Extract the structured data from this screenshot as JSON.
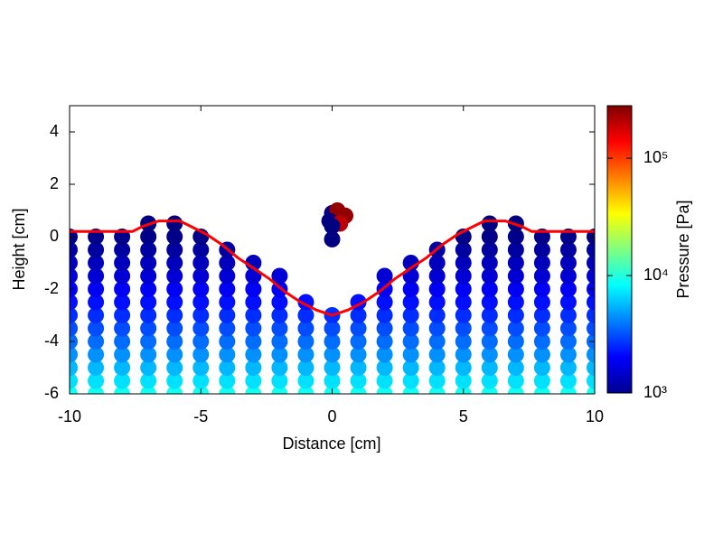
{
  "chart_data": {
    "type": "scatter",
    "xlabel": "Distance [cm]",
    "ylabel": "Height [cm]",
    "xlim": [
      -10,
      10
    ],
    "ylim": [
      -6,
      5
    ],
    "xticks": [
      -10,
      -5,
      0,
      5,
      10
    ],
    "yticks": [
      -6,
      -4,
      -2,
      0,
      2,
      4
    ],
    "x": [
      -10,
      -10,
      -10,
      -10,
      -10,
      -10,
      -10,
      -10,
      -10,
      -10,
      -10,
      -10,
      -10,
      -9,
      -9,
      -9,
      -9,
      -9,
      -9,
      -9,
      -9,
      -9,
      -9,
      -9,
      -9,
      -9,
      -8,
      -8,
      -8,
      -8,
      -8,
      -8,
      -8,
      -8,
      -8,
      -8,
      -8,
      -8,
      -8,
      -7,
      -7,
      -7,
      -7,
      -7,
      -7,
      -7,
      -7,
      -7,
      -7,
      -7,
      -7,
      -7,
      -7,
      -6,
      -6,
      -6,
      -6,
      -6,
      -6,
      -6,
      -6,
      -6,
      -6,
      -6,
      -6,
      -6,
      -6,
      -5,
      -5,
      -5,
      -5,
      -5,
      -5,
      -5,
      -5,
      -5,
      -5,
      -5,
      -5,
      -5,
      -4,
      -4,
      -4,
      -4,
      -4,
      -4,
      -4,
      -4,
      -4,
      -4,
      -4,
      -4,
      -3,
      -3,
      -3,
      -3,
      -3,
      -3,
      -3,
      -3,
      -3,
      -3,
      -3,
      -2,
      -2,
      -2,
      -2,
      -2,
      -2,
      -2,
      -2,
      -2,
      -2,
      -1,
      -1,
      -1,
      -1,
      -1,
      -1,
      -1,
      -1,
      0,
      0,
      0,
      0,
      0,
      0,
      0,
      1,
      1,
      1,
      1,
      1,
      1,
      1,
      1,
      2,
      2,
      2,
      2,
      2,
      2,
      2,
      2,
      2,
      2,
      3,
      3,
      3,
      3,
      3,
      3,
      3,
      3,
      3,
      3,
      3,
      4,
      4,
      4,
      4,
      4,
      4,
      4,
      4,
      4,
      4,
      4,
      4,
      5,
      5,
      5,
      5,
      5,
      5,
      5,
      5,
      5,
      5,
      5,
      5,
      5,
      6,
      6,
      6,
      6,
      6,
      6,
      6,
      6,
      6,
      6,
      6,
      6,
      6,
      6,
      7,
      7,
      7,
      7,
      7,
      7,
      7,
      7,
      7,
      7,
      7,
      7,
      7,
      7,
      8,
      8,
      8,
      8,
      8,
      8,
      8,
      8,
      8,
      8,
      8,
      8,
      8,
      9,
      9,
      9,
      9,
      9,
      9,
      9,
      9,
      9,
      9,
      9,
      9,
      9,
      10,
      10,
      10,
      10,
      10,
      10,
      10,
      10,
      10,
      10,
      10,
      10,
      10,
      0,
      0.2,
      0.5,
      -0.1,
      0.3,
      0,
      0
    ],
    "y": [
      -6,
      -5.5,
      -5,
      -4.5,
      -4,
      -3.5,
      -3,
      -2.5,
      -2,
      -1.5,
      -1,
      -0.5,
      0,
      -6,
      -5.5,
      -5,
      -4.5,
      -4,
      -3.5,
      -3,
      -2.5,
      -2,
      -1.5,
      -1,
      -0.5,
      0,
      -6,
      -5.5,
      -5,
      -4.5,
      -4,
      -3.5,
      -3,
      -2.5,
      -2,
      -1.5,
      -1,
      -0.5,
      0,
      -6,
      -5.5,
      -5,
      -4.5,
      -4,
      -3.5,
      -3,
      -2.5,
      -2,
      -1.5,
      -1,
      -0.5,
      0,
      0.5,
      -6,
      -5.5,
      -5,
      -4.5,
      -4,
      -3.5,
      -3,
      -2.5,
      -2,
      -1.5,
      -1,
      -0.5,
      0,
      0.5,
      -6,
      -5.5,
      -5,
      -4.5,
      -4,
      -3.5,
      -3,
      -2.5,
      -2,
      -1.5,
      -1,
      -0.5,
      0,
      -6,
      -5.5,
      -5,
      -4.5,
      -4,
      -3.5,
      -3,
      -2.5,
      -2,
      -1.5,
      -1,
      -0.5,
      -6,
      -5.5,
      -5,
      -4.5,
      -4,
      -3.5,
      -3,
      -2.5,
      -2,
      -1.5,
      -1,
      -6,
      -5.5,
      -5,
      -4.5,
      -4,
      -3.5,
      -3,
      -2.5,
      -2,
      -1.5,
      -6,
      -5.5,
      -5,
      -4.5,
      -4,
      -3.5,
      -3,
      -2.5,
      -6,
      -5.5,
      -5,
      -4.5,
      -4,
      -3.5,
      -3,
      -6,
      -5.5,
      -5,
      -4.5,
      -4,
      -3.5,
      -3,
      -2.5,
      -6,
      -5.5,
      -5,
      -4.5,
      -4,
      -3.5,
      -3,
      -2.5,
      -2,
      -1.5,
      -6,
      -5.5,
      -5,
      -4.5,
      -4,
      -3.5,
      -3,
      -2.5,
      -2,
      -1.5,
      -1,
      -6,
      -5.5,
      -5,
      -4.5,
      -4,
      -3.5,
      -3,
      -2.5,
      -2,
      -1.5,
      -1,
      -0.5,
      -6,
      -5.5,
      -5,
      -4.5,
      -4,
      -3.5,
      -3,
      -2.5,
      -2,
      -1.5,
      -1,
      -0.5,
      0,
      -6,
      -5.5,
      -5,
      -4.5,
      -4,
      -3.5,
      -3,
      -2.5,
      -2,
      -1.5,
      -1,
      -0.5,
      0,
      0.5,
      -6,
      -5.5,
      -5,
      -4.5,
      -4,
      -3.5,
      -3,
      -2.5,
      -2,
      -1.5,
      -1,
      -0.5,
      0,
      0.5,
      -6,
      -5.5,
      -5,
      -4.5,
      -4,
      -3.5,
      -3,
      -2.5,
      -2,
      -1.5,
      -1,
      -0.5,
      0,
      -6,
      -5.5,
      -5,
      -4.5,
      -4,
      -3.5,
      -3,
      -2.5,
      -2,
      -1.5,
      -1,
      -0.5,
      0,
      -6,
      -5.5,
      -5,
      -4.5,
      -4,
      -3.5,
      -3,
      -2.5,
      -2,
      -1.5,
      -1,
      -0.5,
      0,
      0.9,
      1.0,
      0.8,
      0.6,
      0.5,
      0.4,
      -0.1
    ],
    "pressure": [
      9000,
      7000,
      5600,
      4500,
      3700,
      3100,
      2600,
      2200,
      1900,
      1600,
      1400,
      1200,
      1050,
      9000,
      7000,
      5600,
      4500,
      3700,
      3100,
      2600,
      2200,
      1900,
      1600,
      1400,
      1200,
      1050,
      9000,
      7000,
      5600,
      4500,
      3700,
      3100,
      2600,
      2200,
      1900,
      1600,
      1400,
      1200,
      1050,
      9000,
      7000,
      5600,
      4500,
      3700,
      3100,
      2600,
      2200,
      1900,
      1600,
      1400,
      1200,
      1050,
      1000,
      9000,
      7000,
      5600,
      4500,
      3700,
      3100,
      2600,
      2200,
      1900,
      1600,
      1400,
      1200,
      1050,
      1000,
      9000,
      7000,
      5600,
      4500,
      3700,
      3100,
      2600,
      2200,
      1900,
      1600,
      1400,
      1200,
      1050,
      9000,
      7000,
      5600,
      4500,
      3700,
      3100,
      2600,
      2200,
      1900,
      1600,
      1400,
      1200,
      9000,
      7000,
      5600,
      4500,
      3700,
      3100,
      2600,
      2200,
      1900,
      1600,
      1400,
      9000,
      7000,
      5600,
      4500,
      3700,
      3100,
      2600,
      2200,
      1900,
      1600,
      9000,
      7000,
      5600,
      4500,
      3700,
      3100,
      2600,
      2200,
      9000,
      7000,
      5600,
      4500,
      3700,
      3100,
      2600,
      9000,
      7000,
      5600,
      4500,
      3700,
      3100,
      2600,
      2200,
      9000,
      7000,
      5600,
      4500,
      3700,
      3100,
      2600,
      2200,
      1900,
      1600,
      9000,
      7000,
      5600,
      4500,
      3700,
      3100,
      2600,
      2200,
      1900,
      1600,
      1400,
      9000,
      7000,
      5600,
      4500,
      3700,
      3100,
      2600,
      2200,
      1900,
      1600,
      1400,
      1200,
      9000,
      7000,
      5600,
      4500,
      3700,
      3100,
      2600,
      2200,
      1900,
      1600,
      1400,
      1200,
      1050,
      9000,
      7000,
      5600,
      4500,
      3700,
      3100,
      2600,
      2200,
      1900,
      1600,
      1400,
      1200,
      1050,
      1000,
      9000,
      7000,
      5600,
      4500,
      3700,
      3100,
      2600,
      2200,
      1900,
      1600,
      1400,
      1200,
      1050,
      1000,
      9000,
      7000,
      5600,
      4500,
      3700,
      3100,
      2600,
      2200,
      1900,
      1600,
      1400,
      1200,
      1050,
      9000,
      7000,
      5600,
      4500,
      3700,
      3100,
      2600,
      2200,
      1900,
      1600,
      1400,
      1200,
      1050,
      9000,
      7000,
      5600,
      4500,
      3700,
      3100,
      2600,
      2200,
      1900,
      1600,
      1400,
      1200,
      1050,
      1000,
      250000,
      250000,
      1000,
      200000,
      1000,
      1000
    ],
    "colorbar": {
      "label": "Pressure [Pa]",
      "colormap": "jet",
      "log_scale": true,
      "clim": [
        1000,
        280000
      ],
      "ticks": [
        {
          "value": 1000,
          "label": "10³"
        },
        {
          "value": 10000,
          "label": "10⁴"
        },
        {
          "value": 100000,
          "label": "10⁵"
        }
      ]
    },
    "line": {
      "color": "#ff0000",
      "x": [
        -10,
        -7.6,
        -7.2,
        -6.6,
        -5.8,
        -5.4,
        -4.8,
        -4.2,
        -3.6,
        -3,
        -2.4,
        -1.8,
        -1.2,
        -0.6,
        0,
        0.6,
        1.2,
        1.8,
        2.4,
        3,
        3.6,
        4.2,
        4.8,
        5.4,
        5.8,
        6.6,
        7.2,
        7.6,
        10
      ],
      "y": [
        0.2,
        0.2,
        0.4,
        0.6,
        0.6,
        0.4,
        0.1,
        -0.3,
        -0.8,
        -1.2,
        -1.6,
        -2.1,
        -2.5,
        -2.8,
        -3.0,
        -2.8,
        -2.5,
        -2.1,
        -1.6,
        -1.2,
        -0.8,
        -0.3,
        0.1,
        0.4,
        0.6,
        0.6,
        0.4,
        0.2,
        0.2
      ]
    }
  }
}
